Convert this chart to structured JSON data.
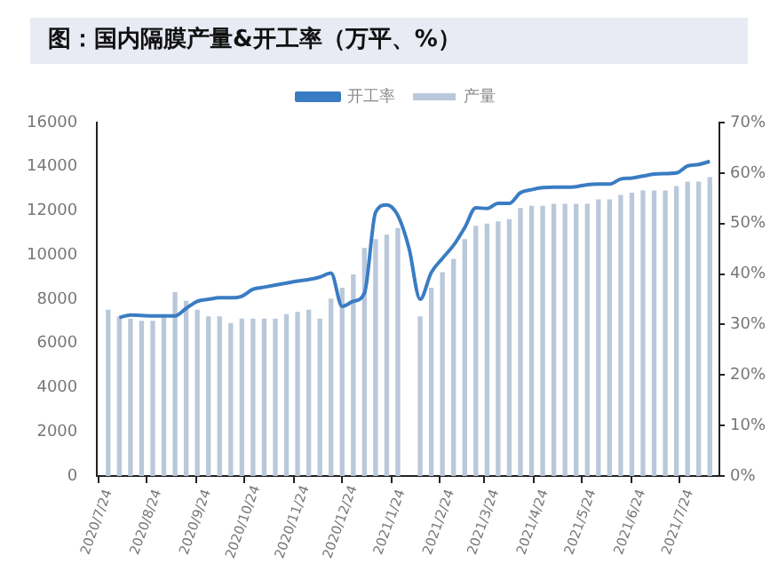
{
  "chart_data": {
    "type": "bar",
    "title": "图：国内隔膜产量&开工率（万平、%）",
    "x": [
      "2020-07-31",
      "2020-08-07",
      "2020-08-14",
      "2020-08-21",
      "2020-08-28",
      "2020-09-04",
      "2020-09-11",
      "2020-09-18",
      "2020-09-25",
      "2020-10-02",
      "2020-10-09",
      "2020-10-16",
      "2020-10-23",
      "2020-10-30",
      "2020-11-06",
      "2020-11-13",
      "2020-11-20",
      "2020-11-27",
      "2020-12-04",
      "2020-12-11",
      "2020-12-18",
      "2020-12-25",
      "2021-01-01",
      "2021-01-08",
      "2021-01-15",
      "2021-01-22",
      "2021-01-29",
      "2021-02-05",
      "2021-02-12",
      "2021-02-19",
      "2021-02-26",
      "2021-03-05",
      "2021-03-12",
      "2021-03-19",
      "2021-03-26",
      "2021-04-02",
      "2021-04-09",
      "2021-04-16",
      "2021-04-23",
      "2021-04-30",
      "2021-05-07",
      "2021-05-14",
      "2021-05-21",
      "2021-05-28",
      "2021-06-04",
      "2021-06-11",
      "2021-06-18",
      "2021-06-25",
      "2021-07-02",
      "2021-07-09",
      "2021-07-16",
      "2021-07-23",
      "2021-07-30",
      "2021-08-06",
      "2021-08-13"
    ],
    "series": [
      {
        "name": "产量",
        "color": "#b9c8da",
        "values": [
          7500,
          7200,
          7100,
          7000,
          7000,
          7200,
          8300,
          7900,
          7500,
          7200,
          7200,
          6900,
          7100,
          7100,
          7100,
          7100,
          7300,
          7400,
          7500,
          7100,
          8000,
          8500,
          9100,
          10300,
          10700,
          10900,
          11200,
          null,
          7200,
          8500,
          9200,
          9800,
          10700,
          11300,
          11400,
          11500,
          11600,
          12100,
          12200,
          12200,
          12300,
          12300,
          12300,
          12300,
          12500,
          12500,
          12700,
          12800,
          12900,
          12900,
          12900,
          13100,
          13300,
          13300,
          13500
        ]
      },
      {
        "name": "开工率",
        "type": "line",
        "axis": "y2",
        "color": "#3a7cc3",
        "values": [
          null,
          31.4,
          31.9,
          31.8,
          31.7,
          31.7,
          31.7,
          33.2,
          34.6,
          35.0,
          35.3,
          35.3,
          35.6,
          37.0,
          37.4,
          37.8,
          38.2,
          38.6,
          38.9,
          39.4,
          40.2,
          33.6,
          34.6,
          36.2,
          52.2,
          53.7,
          51.6,
          45.1,
          35.0,
          40.3,
          43.1,
          45.7,
          49.2,
          53.1,
          53.0,
          54.0,
          54.0,
          56.1,
          56.7,
          57.1,
          57.2,
          57.2,
          57.3,
          57.7,
          57.8,
          57.8,
          58.8,
          59.0,
          59.4,
          59.8,
          59.9,
          60.0,
          61.4,
          61.7,
          62.3
        ]
      }
    ],
    "xlim": [
      "2020-07-24",
      "2021-08-19"
    ],
    "xticks": [
      {
        "value": "2020-07-24",
        "label": "2020/7/24"
      },
      {
        "value": "2020-08-24",
        "label": "2020/8/24"
      },
      {
        "value": "2020-09-24",
        "label": "2020/9/24"
      },
      {
        "value": "2020-10-24",
        "label": "2020/10/24"
      },
      {
        "value": "2020-11-24",
        "label": "2020/11/24"
      },
      {
        "value": "2020-12-24",
        "label": "2020/12/24"
      },
      {
        "value": "2021-01-24",
        "label": "2021/1/24"
      },
      {
        "value": "2021-02-24",
        "label": "2021/2/24"
      },
      {
        "value": "2021-03-24",
        "label": "2021/3/24"
      },
      {
        "value": "2021-04-24",
        "label": "2021/4/24"
      },
      {
        "value": "2021-05-24",
        "label": "2021/5/24"
      },
      {
        "value": "2021-06-24",
        "label": "2021/6/24"
      },
      {
        "value": "2021-07-24",
        "label": "2021/7/24"
      }
    ],
    "ylim": [
      0,
      16000
    ],
    "yticks": [
      0,
      2000,
      4000,
      6000,
      8000,
      10000,
      12000,
      14000,
      16000
    ],
    "y2lim": [
      0,
      70
    ],
    "y2ticks": [
      {
        "value": 0,
        "label": "0%"
      },
      {
        "value": 10,
        "label": "10%"
      },
      {
        "value": 20,
        "label": "20%"
      },
      {
        "value": 30,
        "label": "30%"
      },
      {
        "value": 40,
        "label": "40%"
      },
      {
        "value": 50,
        "label": "50%"
      },
      {
        "value": 60,
        "label": "60%"
      },
      {
        "value": 70,
        "label": "70%"
      }
    ],
    "grid": false,
    "legend": "top",
    "marker": "none"
  }
}
